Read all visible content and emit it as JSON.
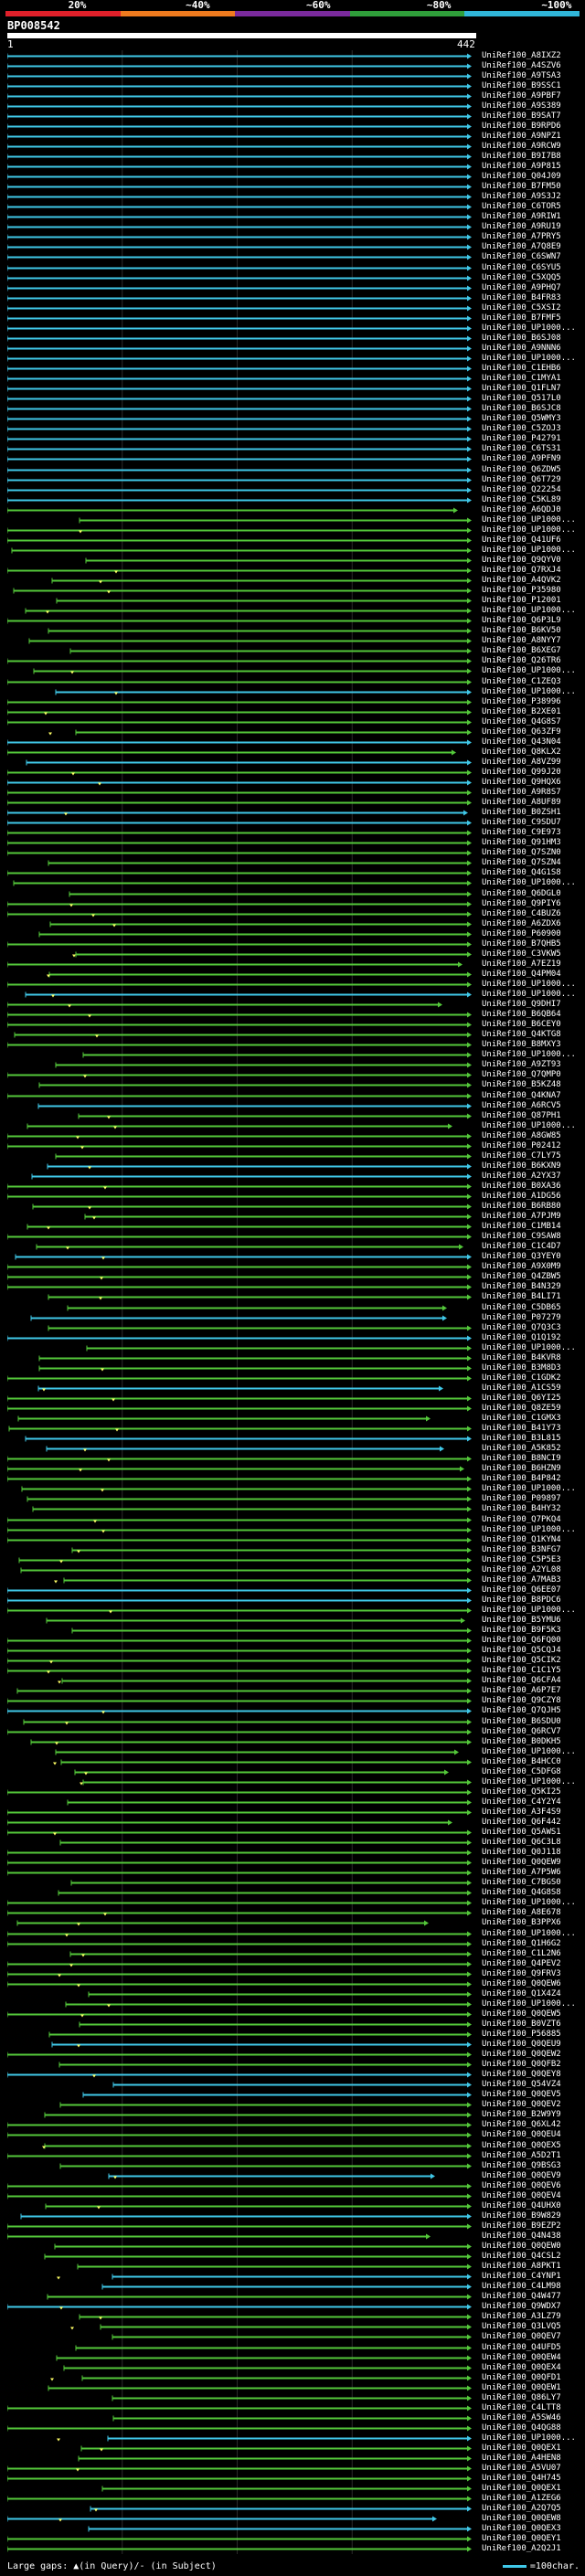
{
  "scale": {
    "labels": [
      "20%",
      "~40%",
      "~60%",
      "~80%",
      "~100%"
    ],
    "band_colors": [
      "#e0202a",
      "#ee7a1e",
      "#7a2a9c",
      "#2f9e3a",
      "#30b6d9"
    ]
  },
  "query": {
    "id": "BP008542",
    "start": "1",
    "end": "442"
  },
  "footer": {
    "gaps_text": "Large gaps: ▲(in Query)/- (in Subject)",
    "legend_text": "=100char."
  },
  "colors": {
    "cyan": "#40c8e8",
    "green": "#54c83a",
    "bright_cyan": "#5ee0ff"
  },
  "hits": [
    "UniRef100_A8IXZ2",
    "UniRef100_A4SZV6",
    "UniRef100_A9TSA3",
    "UniRef100_B9SSC1",
    "UniRef100_A9PBF7",
    "UniRef100_A9S389",
    "UniRef100_B9SAT7",
    "UniRef100_B9RPD6",
    "UniRef100_A9NPZ1",
    "UniRef100_A9RCW9",
    "UniRef100_B9I7B8",
    "UniRef100_A9P815",
    "UniRef100_Q04J09",
    "UniRef100_B7FM50",
    "UniRef100_A9S3J2",
    "UniRef100_C6TOR5",
    "UniRef100_A9RIW1",
    "UniRef100_A9RU19",
    "UniRef100_A7PRY5",
    "UniRef100_A7Q8E9",
    "UniRef100_C6SWN7",
    "UniRef100_C6SYU5",
    "UniRef100_C5XQQ5",
    "UniRef100_A9PHQ7",
    "UniRef100_B4FR83",
    "UniRef100_C5XSI2",
    "UniRef100_B7FMF5",
    "UniRef100_UP1000...",
    "UniRef100_B6SJ08",
    "UniRef100_A9NNN6",
    "UniRef100_UP1000...",
    "UniRef100_C1EHB6",
    "UniRef100_C1MYA1",
    "UniRef100_Q1FLN7",
    "UniRef100_Q517L0",
    "UniRef100_B6SJC8",
    "UniRef100_Q5WMY3",
    "UniRef100_C5ZOJ3",
    "UniRef100_P42791",
    "UniRef100_C6TS31",
    "UniRef100_A9PFN9",
    "UniRef100_Q6ZDW5",
    "UniRef100_Q6T729",
    "UniRef100_Q22254",
    "UniRef100_C5KL89",
    "UniRef100_A6QDJ0",
    "UniRef100_UP1000...",
    "UniRef100_UP1000...",
    "UniRef100_Q41UF6",
    "UniRef100_UP1000...",
    "UniRef100_Q9QYV0",
    "UniRef100_Q7RXJ4",
    "UniRef100_A4QVK2",
    "UniRef100_P35980",
    "UniRef100_P12001",
    "UniRef100_UP1000...",
    "UniRef100_Q6P3L9",
    "UniRef100_B6KV50",
    "UniRef100_A8NYY7",
    "UniRef100_B6XEG7",
    "UniRef100_Q26TR6",
    "UniRef100_UP1000...",
    "UniRef100_C1ZEQ3",
    "UniRef100_UP1000...",
    "UniRef100_P38996",
    "UniRef100_B2XE01",
    "UniRef100_Q4G8S7",
    "UniRef100_Q63ZF9",
    "UniRef100_Q43N04",
    "UniRef100_Q8KLX2",
    "UniRef100_A8VZ99",
    "UniRef100_Q99J20",
    "UniRef100_Q9HQX6",
    "UniRef100_A9R8S7",
    "UniRef100_A8UF89",
    "UniRef100_B0ZSH1",
    "UniRef100_C9SDU7",
    "UniRef100_C9E973",
    "UniRef100_Q91HM3",
    "UniRef100_Q7SZN0",
    "UniRef100_Q7SZN4",
    "UniRef100_Q4G1S8",
    "UniRef100_UP1000...",
    "UniRef100_Q6DGL0",
    "UniRef100_Q9PIY6",
    "UniRef100_C4BUZ6",
    "UniRef100_A6ZDX6",
    "UniRef100_P60900",
    "UniRef100_B7QHB5",
    "UniRef100_C3VKW5",
    "UniRef100_A7EZ19",
    "UniRef100_Q4PM04",
    "UniRef100_UP1000...",
    "UniRef100_UP1000...",
    "UniRef100_Q9DHI7",
    "UniRef100_B6QB64",
    "UniRef100_B6CEY0",
    "UniRef100_Q4KTG8",
    "UniRef100_B8MXY3",
    "UniRef100_UP1000...",
    "UniRef100_A9ZT93",
    "UniRef100_Q7QMP0",
    "UniRef100_B5KZ48",
    "UniRef100_Q4KNA7",
    "UniRef100_A6RCV5",
    "UniRef100_Q87PH1",
    "UniRef100_UP1000...",
    "UniRef100_A8GW85",
    "UniRef100_P02412",
    "UniRef100_C7LY75",
    "UniRef100_B6KXN9",
    "UniRef100_A2YX37",
    "UniRef100_B0XA36",
    "UniRef100_A1DG56",
    "UniRef100_B6RB80",
    "UniRef100_A7PJM9",
    "UniRef100_C1MB14",
    "UniRef100_C9SAW8",
    "UniRef100_C1C4D7",
    "UniRef100_Q3YEY0",
    "UniRef100_A9X0M9",
    "UniRef100_Q4ZBW5",
    "UniRef100_B4N329",
    "UniRef100_B4LI71",
    "UniRef100_C5DB65",
    "UniRef100_P07279",
    "UniRef100_Q7Q3C3",
    "UniRef100_Q1Q192",
    "UniRef100_UP1000...",
    "UniRef100_B4KVR8",
    "UniRef100_B3M8D3",
    "UniRef100_C1GDK2",
    "UniRef100_A1CS59",
    "UniRef100_Q6YI25",
    "UniRef100_Q8ZE59",
    "UniRef100_C1GMX3",
    "UniRef100_B41Y73",
    "UniRef100_B3L815",
    "UniRef100_A5K852",
    "UniRef100_B8NCI9",
    "UniRef100_B6HZN9",
    "UniRef100_B4P842",
    "UniRef100_UP1000...",
    "UniRef100_P09897",
    "UniRef100_B4HY32",
    "UniRef100_Q7PKQ4",
    "UniRef100_UP1000...",
    "UniRef100_Q1KYN4",
    "UniRef100_B3NFG7",
    "UniRef100_C5P5E3",
    "UniRef100_A2YL08",
    "UniRef100_A7MAB3",
    "UniRef100_Q6EE07",
    "UniRef100_B8PDC6",
    "UniRef100_UP1000...",
    "UniRef100_B5YMU6",
    "UniRef100_B9F5K3",
    "UniRef100_Q6FQ00",
    "UniRef100_Q5CQJ4",
    "UniRef100_Q5CIK2",
    "UniRef100_C1C1Y5",
    "UniRef100_Q6CFA4",
    "UniRef100_A6P7E7",
    "UniRef100_Q9CZY8",
    "UniRef100_Q7QJH5",
    "UniRef100_B6SDU0",
    "UniRef100_Q6RCV7",
    "UniRef100_B0DKH5",
    "UniRef100_UP1000...",
    "UniRef100_B4HCC0",
    "UniRef100_C5DFG8",
    "UniRef100_UP1000...",
    "UniRef100_Q5KI25",
    "UniRef100_C4Y2Y4",
    "UniRef100_A3F4S9",
    "UniRef100_Q6F442",
    "UniRef100_Q5AWS1",
    "UniRef100_Q6C3L8",
    "UniRef100_Q0J118",
    "UniRef100_Q0QEW9",
    "UniRef100_A7P5W6",
    "UniRef100_C7BGS0",
    "UniRef100_Q4G8S8",
    "UniRef100_UP1000...",
    "UniRef100_A8E678",
    "UniRef100_B3PPX6",
    "UniRef100_UP1000...",
    "UniRef100_Q1H6G2",
    "UniRef100_C1L2N6",
    "UniRef100_Q4PEV2",
    "UniRef100_Q9FRV3",
    "UniRef100_Q0QEW6",
    "UniRef100_Q1X4Z4",
    "UniRef100_UP1000...",
    "UniRef100_Q0QEW5",
    "UniRef100_B0VZT6",
    "UniRef100_P56885",
    "UniRef100_Q0QEU9",
    "UniRef100_Q0QEW2",
    "UniRef100_Q0QFB2",
    "UniRef100_Q0QEY8",
    "UniRef100_Q54VZ4",
    "UniRef100_Q0QEV5",
    "UniRef100_Q0QEV2",
    "UniRef100_B2W9Y9",
    "UniRef100_Q6XL42",
    "UniRef100_Q0QEU4",
    "UniRef100_Q0QEX5",
    "UniRef100_A5D2T1",
    "UniRef100_Q9BSG3",
    "UniRef100_Q0QEV9",
    "UniRef100_Q0QEV6",
    "UniRef100_Q0QEV4",
    "UniRef100_Q4UHX0",
    "UniRef100_B9W829",
    "UniRef100_B9EZP2",
    "UniRef100_Q4N438",
    "UniRef100_Q0QEW0",
    "UniRef100_Q4CSL2",
    "UniRef100_A8PKT1",
    "UniRef100_C4YNP1",
    "UniRef100_C4LM98",
    "UniRef100_Q4W477",
    "UniRef100_Q9WDX7",
    "UniRef100_A3LZ79",
    "UniRef100_Q3LVQ5",
    "UniRef100_Q0QEV7",
    "UniRef100_Q4UFD5",
    "UniRef100_Q0QEW4",
    "UniRef100_Q0QEX4",
    "UniRef100_Q0QFD1",
    "UniRef100_Q0QEW1",
    "UniRef100_Q86LY7",
    "UniRef100_C4LTT8",
    "UniRef100_A5SW46",
    "UniRef100_Q4QG88",
    "UniRef100_UP1000...",
    "UniRef100_Q0QEX1",
    "UniRef100_A4HEN8",
    "UniRef100_A5VU07",
    "UniRef100_Q4H745",
    "UniRef100_Q0QEX1",
    "UniRef100_A1ZEG6",
    "UniRef100_A2Q7Q5",
    "UniRef100_Q0QEW8",
    "UniRef100_Q0QEX3",
    "UniRef100_Q0QEY1",
    "UniRef100_A2Q2J1"
  ]
}
